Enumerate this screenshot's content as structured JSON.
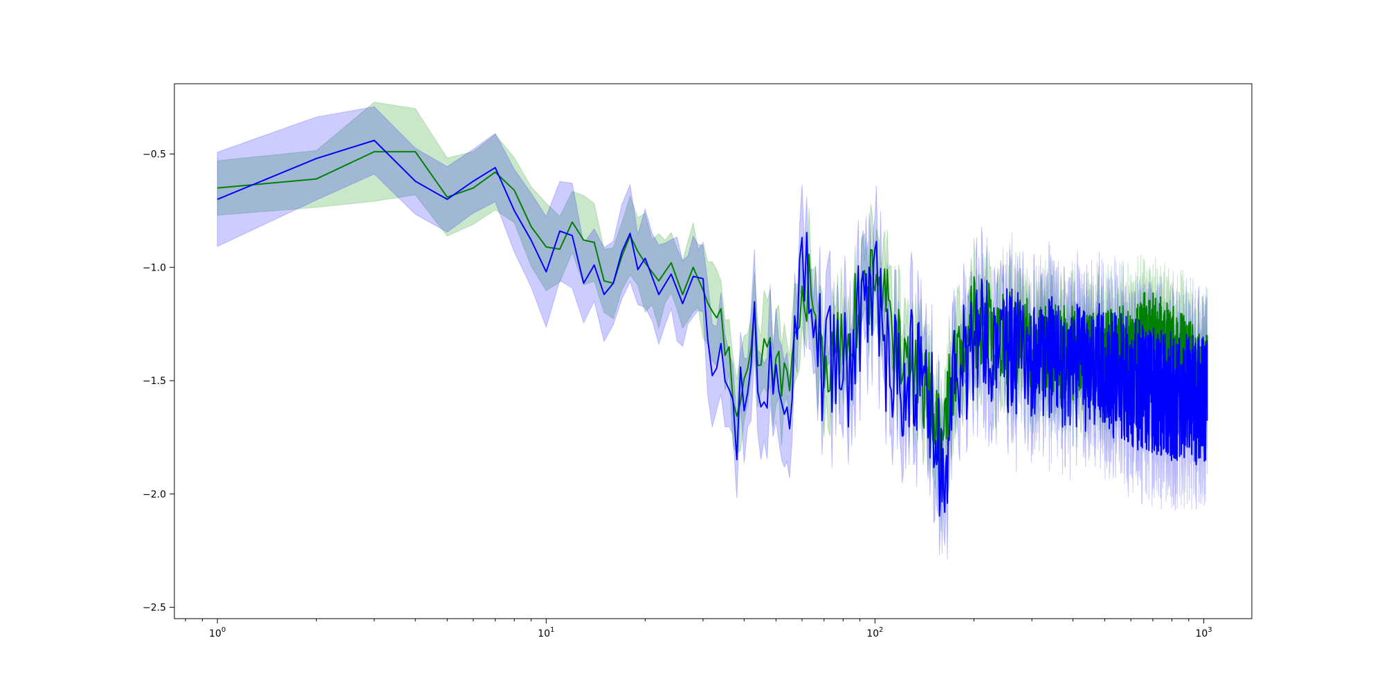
{
  "chart_data": {
    "type": "line",
    "title": "",
    "xlabel": "",
    "ylabel": "",
    "x_scale": "log",
    "xlim": [
      0.74,
      1400
    ],
    "ylim": [
      -2.55,
      -0.19
    ],
    "grid": false,
    "legend": "none",
    "x_ticks": [
      {
        "value": 1,
        "base": "10",
        "exp": "0"
      },
      {
        "value": 10,
        "base": "10",
        "exp": "1"
      },
      {
        "value": 100,
        "base": "10",
        "exp": "2"
      },
      {
        "value": 1000,
        "base": "10",
        "exp": "3"
      }
    ],
    "y_ticks": [
      {
        "value": -0.5,
        "label": "−0.5"
      },
      {
        "value": -1.0,
        "label": "−1.0"
      },
      {
        "value": -1.5,
        "label": "−1.5"
      },
      {
        "value": -2.0,
        "label": "−2.0"
      },
      {
        "value": -2.5,
        "label": "−2.5"
      }
    ],
    "series": [
      {
        "color": "#008000",
        "band_color": "#2ca02c",
        "band_opacity": 0.25,
        "band_halfwidth": 0.17,
        "x_range": [
          1,
          1024
        ],
        "points": [
          [
            1,
            -0.65
          ],
          [
            2,
            -0.61
          ],
          [
            3,
            -0.49
          ],
          [
            4,
            -0.49
          ],
          [
            5,
            -0.69
          ],
          [
            6,
            -0.65
          ],
          [
            7,
            -0.58
          ],
          [
            8,
            -0.66
          ],
          [
            9,
            -0.82
          ],
          [
            10,
            -0.91
          ],
          [
            11,
            -0.92
          ],
          [
            12,
            -0.8
          ],
          [
            13,
            -0.88
          ],
          [
            14,
            -0.89
          ],
          [
            15,
            -1.06
          ],
          [
            16,
            -1.07
          ],
          [
            17,
            -0.95
          ],
          [
            18,
            -0.86
          ],
          [
            19,
            -0.93
          ],
          [
            20,
            -0.98
          ],
          [
            22,
            -1.06
          ],
          [
            24,
            -0.98
          ],
          [
            26,
            -1.12
          ],
          [
            28,
            -1.0
          ],
          [
            30,
            -1.1
          ],
          [
            32,
            -1.24
          ],
          [
            34,
            -1.27
          ],
          [
            36,
            -1.33
          ],
          [
            38,
            -1.62
          ],
          [
            40,
            -1.55
          ],
          [
            42,
            -1.25
          ],
          [
            45,
            -1.38
          ],
          [
            48,
            -1.36
          ],
          [
            50,
            -1.45
          ],
          [
            52,
            -1.6
          ],
          [
            55,
            -1.55
          ],
          [
            58,
            -1.3
          ],
          [
            62,
            -1.05
          ],
          [
            66,
            -1.3
          ],
          [
            70,
            -1.38
          ],
          [
            75,
            -1.45
          ],
          [
            80,
            -1.3
          ],
          [
            90,
            -1.2
          ],
          [
            100,
            -1.0
          ],
          [
            120,
            -1.4
          ],
          [
            150,
            -1.6
          ],
          [
            160,
            -1.8
          ],
          [
            170,
            -1.5
          ],
          [
            200,
            -1.25
          ],
          [
            300,
            -1.35
          ],
          [
            500,
            -1.4
          ],
          [
            700,
            -1.3
          ],
          [
            1024,
            -1.5
          ]
        ],
        "noise_from": 30,
        "noise_amp": 0.13,
        "seed": 7
      },
      {
        "color": "#0000ff",
        "band_color": "#0000ff",
        "band_opacity": 0.2,
        "band_halfwidth": 0.2,
        "x_range": [
          1,
          1024
        ],
        "points": [
          [
            1,
            -0.7
          ],
          [
            2,
            -0.52
          ],
          [
            3,
            -0.44
          ],
          [
            4,
            -0.62
          ],
          [
            5,
            -0.7
          ],
          [
            6,
            -0.62
          ],
          [
            7,
            -0.56
          ],
          [
            8,
            -0.75
          ],
          [
            9,
            -0.88
          ],
          [
            10,
            -1.02
          ],
          [
            11,
            -0.84
          ],
          [
            12,
            -0.86
          ],
          [
            13,
            -1.07
          ],
          [
            14,
            -0.99
          ],
          [
            15,
            -1.12
          ],
          [
            16,
            -1.07
          ],
          [
            17,
            -0.93
          ],
          [
            18,
            -0.85
          ],
          [
            19,
            -1.01
          ],
          [
            20,
            -0.96
          ],
          [
            22,
            -1.12
          ],
          [
            24,
            -1.03
          ],
          [
            26,
            -1.16
          ],
          [
            28,
            -1.04
          ],
          [
            30,
            -1.05
          ],
          [
            32,
            -1.43
          ],
          [
            34,
            -1.26
          ],
          [
            36,
            -1.38
          ],
          [
            38,
            -1.72
          ],
          [
            40,
            -1.5
          ],
          [
            42,
            -1.33
          ],
          [
            45,
            -1.42
          ],
          [
            48,
            -1.48
          ],
          [
            50,
            -1.52
          ],
          [
            52,
            -1.7
          ],
          [
            55,
            -1.6
          ],
          [
            58,
            -1.12
          ],
          [
            62,
            -1.06
          ],
          [
            66,
            -1.3
          ],
          [
            70,
            -1.45
          ],
          [
            75,
            -1.35
          ],
          [
            80,
            -1.5
          ],
          [
            90,
            -1.25
          ],
          [
            100,
            -1.05
          ],
          [
            110,
            -1.5
          ],
          [
            130,
            -1.45
          ],
          [
            150,
            -1.65
          ],
          [
            160,
            -2.0
          ],
          [
            170,
            -1.6
          ],
          [
            200,
            -1.3
          ],
          [
            300,
            -1.4
          ],
          [
            500,
            -1.45
          ],
          [
            700,
            -1.55
          ],
          [
            1024,
            -1.6
          ]
        ],
        "noise_from": 30,
        "noise_amp": 0.18,
        "seed": 13
      }
    ]
  }
}
